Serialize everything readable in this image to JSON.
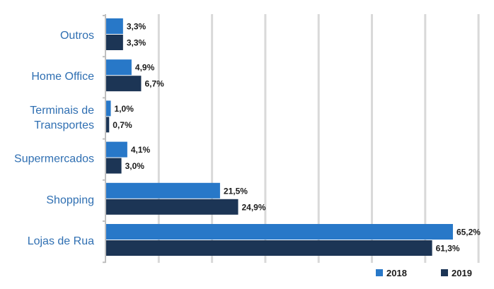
{
  "chart_data": {
    "type": "bar",
    "orientation": "horizontal",
    "categories": [
      "Outros",
      "Home Office",
      "Terminais de Transportes",
      "Supermercados",
      "Shopping",
      "Lojas de Rua"
    ],
    "category_lines": [
      [
        "Outros"
      ],
      [
        "Home Office"
      ],
      [
        "Terminais de",
        "Transportes"
      ],
      [
        "Supermercados"
      ],
      [
        "Shopping"
      ],
      [
        "Lojas de Rua"
      ]
    ],
    "series": [
      {
        "name": "2018",
        "color": "#2878c8",
        "values": [
          3.3,
          4.9,
          1.0,
          4.1,
          21.5,
          65.2
        ],
        "labels": [
          "3,3%",
          "4,9%",
          "1,0%",
          "4,1%",
          "21,5%",
          "65,2%"
        ]
      },
      {
        "name": "2019",
        "color": "#1c3555",
        "values": [
          3.3,
          6.7,
          0.7,
          3.0,
          24.9,
          61.3
        ],
        "labels": [
          "3,3%",
          "6,7%",
          "0,7%",
          "3,0%",
          "24,9%",
          "61,3%"
        ]
      }
    ],
    "xlim": [
      0,
      70
    ],
    "x_gridlines": [
      0,
      10,
      20,
      30,
      40,
      50,
      60,
      70
    ],
    "grid": true,
    "legend_position": "bottom-right"
  }
}
